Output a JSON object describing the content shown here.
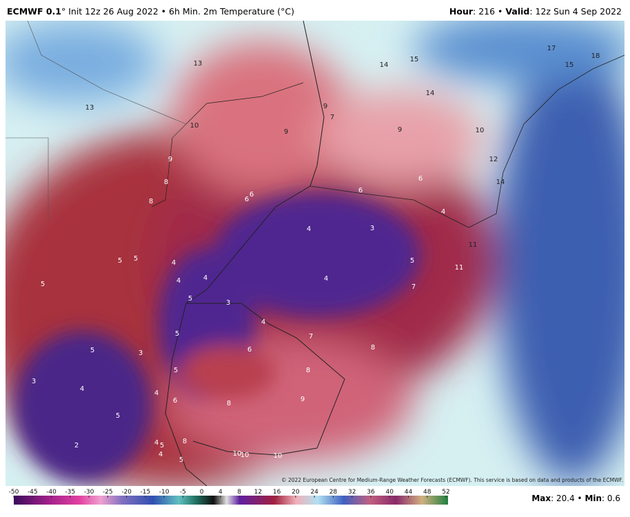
{
  "header": {
    "left_bold": "ECMWF 0.1",
    "left_rest": "° Init 12z 26 Aug 2022 • 6h Min. 2m Temperature (°C)",
    "hour_key": "Hour",
    "hour_rest": ": 216 • ",
    "valid_key": "Valid",
    "valid_rest": ": 12z Sun 4 Sep 2022"
  },
  "map": {
    "labels": [
      13,
      13,
      14,
      15,
      17,
      15,
      18,
      14,
      9,
      7,
      9,
      10,
      9,
      10,
      9,
      8,
      8,
      6,
      6,
      6,
      6,
      12,
      14,
      4,
      4,
      3,
      11,
      11,
      5,
      5,
      4,
      4,
      4,
      5,
      5,
      3,
      4,
      5,
      7,
      4,
      5,
      7,
      5,
      3,
      6,
      8,
      5,
      8,
      3,
      4,
      4,
      6,
      8,
      9,
      5,
      2,
      4,
      5,
      8,
      4,
      5,
      10,
      10,
      10
    ],
    "copyright": "© 2022 European Centre for Medium-Range Weather Forecasts (ECMWF). This service is based on data and products of the ECMWF."
  },
  "colorbar": {
    "ticks": [
      -50,
      -45,
      -40,
      -35,
      -30,
      -25,
      -20,
      -15,
      -10,
      -5,
      0,
      4,
      8,
      12,
      16,
      20,
      24,
      28,
      32,
      36,
      40,
      44,
      48,
      52
    ]
  },
  "footer": {
    "max_key": "Max",
    "max_rest": ": 20.4 • ",
    "min_key": "Min",
    "min_rest": ": 0.6"
  }
}
